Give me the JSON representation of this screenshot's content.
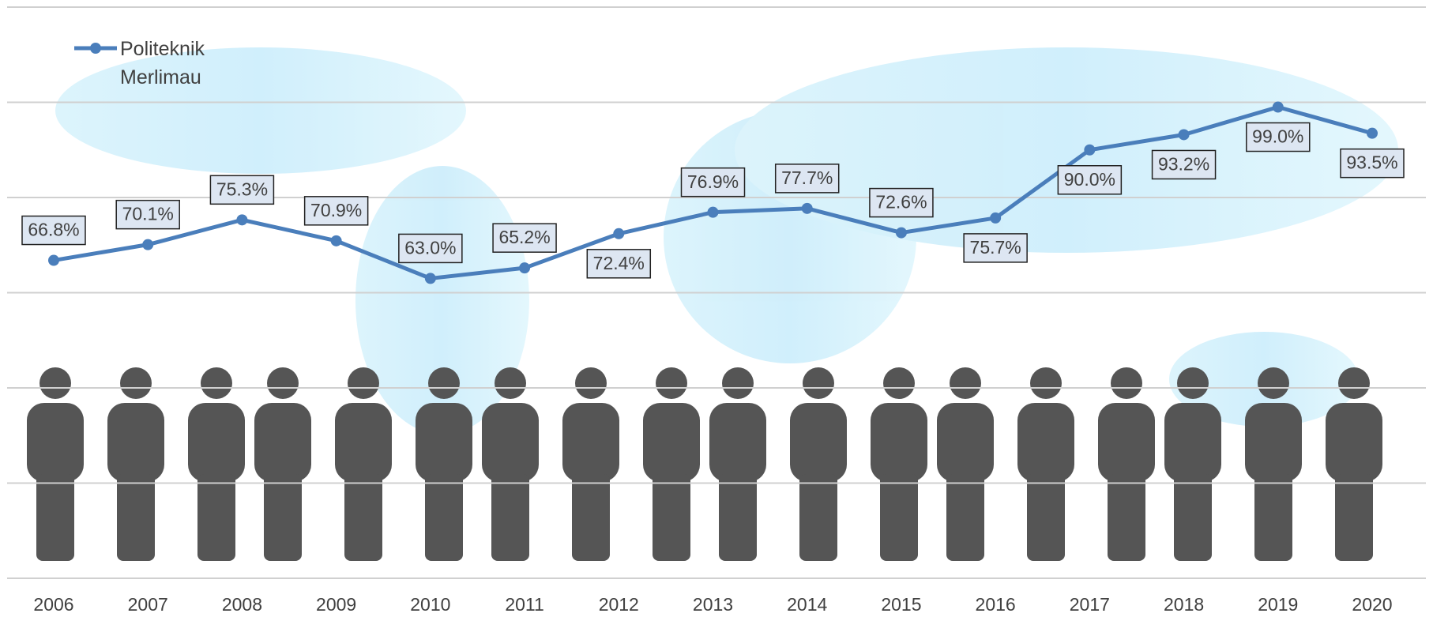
{
  "chart_data": {
    "type": "line",
    "categories": [
      "2006",
      "2007",
      "2008",
      "2009",
      "2010",
      "2011",
      "2012",
      "2013",
      "2014",
      "2015",
      "2016",
      "2017",
      "2018",
      "2019",
      "2020"
    ],
    "series": [
      {
        "name": "Politeknik Merlimau",
        "color": "#4a7ebb",
        "values": [
          66.8,
          70.1,
          75.3,
          70.9,
          63.0,
          65.2,
          72.4,
          76.9,
          77.7,
          72.6,
          75.7,
          90.0,
          93.2,
          99.0,
          93.5
        ],
        "value_labels": [
          "66.8%",
          "70.1%",
          "75.3%",
          "70.9%",
          "63.0%",
          "65.2%",
          "72.4%",
          "76.9%",
          "77.7%",
          "72.6%",
          "75.7%",
          "90.0%",
          "93.2%",
          "99.0%",
          "93.5%"
        ]
      }
    ],
    "ylim": [
      0,
      120
    ],
    "yticks": [
      0,
      20,
      40,
      60,
      80,
      100,
      120
    ],
    "grid": true,
    "legend": "top-left"
  }
}
